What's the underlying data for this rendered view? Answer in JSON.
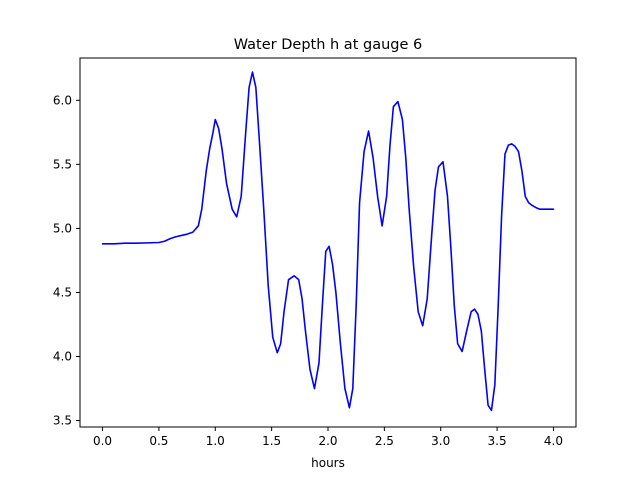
{
  "chart_data": {
    "type": "line",
    "title": "Water Depth h at gauge 6",
    "xlabel": "hours",
    "ylabel": "",
    "xlim": [
      -0.2,
      4.2
    ],
    "ylim": [
      3.45,
      6.33
    ],
    "xticks": [
      0.0,
      0.5,
      1.0,
      1.5,
      2.0,
      2.5,
      3.0,
      3.5,
      4.0
    ],
    "xtick_labels": [
      "0.0",
      "0.5",
      "1.0",
      "1.5",
      "2.0",
      "2.5",
      "3.0",
      "3.5",
      "4.0"
    ],
    "yticks": [
      3.5,
      4.0,
      4.5,
      5.0,
      5.5,
      6.0
    ],
    "ytick_labels": [
      "3.5",
      "4.0",
      "4.5",
      "5.0",
      "5.5",
      "6.0"
    ],
    "grid": false,
    "series": [
      {
        "color": "#0000ff",
        "x": [
          0.0,
          0.1,
          0.2,
          0.3,
          0.4,
          0.5,
          0.55,
          0.6,
          0.65,
          0.7,
          0.75,
          0.8,
          0.85,
          0.88,
          0.92,
          0.95,
          0.98,
          1.0,
          1.03,
          1.06,
          1.1,
          1.15,
          1.19,
          1.23,
          1.27,
          1.3,
          1.33,
          1.36,
          1.39,
          1.43,
          1.47,
          1.51,
          1.55,
          1.58,
          1.61,
          1.65,
          1.7,
          1.74,
          1.77,
          1.8,
          1.84,
          1.88,
          1.92,
          1.95,
          1.98,
          2.01,
          2.04,
          2.07,
          2.11,
          2.15,
          2.19,
          2.22,
          2.25,
          2.28,
          2.32,
          2.36,
          2.4,
          2.44,
          2.48,
          2.52,
          2.55,
          2.58,
          2.62,
          2.66,
          2.69,
          2.72,
          2.76,
          2.8,
          2.84,
          2.88,
          2.92,
          2.95,
          2.98,
          3.02,
          3.06,
          3.09,
          3.12,
          3.15,
          3.19,
          3.23,
          3.27,
          3.3,
          3.33,
          3.36,
          3.39,
          3.42,
          3.45,
          3.48,
          3.51,
          3.54,
          3.57,
          3.6,
          3.63,
          3.66,
          3.69,
          3.72,
          3.75,
          3.78,
          3.81,
          3.85,
          3.88,
          3.91,
          3.94,
          3.97,
          4.0
        ],
        "y": [
          4.88,
          4.88,
          4.885,
          4.885,
          4.887,
          4.89,
          4.9,
          4.92,
          4.935,
          4.945,
          4.955,
          4.97,
          5.02,
          5.15,
          5.45,
          5.62,
          5.75,
          5.85,
          5.78,
          5.62,
          5.35,
          5.15,
          5.09,
          5.25,
          5.75,
          6.1,
          6.22,
          6.1,
          5.7,
          5.15,
          4.55,
          4.15,
          4.03,
          4.1,
          4.35,
          4.6,
          4.63,
          4.6,
          4.45,
          4.2,
          3.9,
          3.75,
          3.95,
          4.4,
          4.82,
          4.86,
          4.72,
          4.5,
          4.1,
          3.75,
          3.6,
          3.75,
          4.4,
          5.2,
          5.6,
          5.76,
          5.55,
          5.25,
          5.02,
          5.25,
          5.65,
          5.95,
          5.99,
          5.85,
          5.55,
          5.15,
          4.7,
          4.35,
          4.24,
          4.45,
          4.95,
          5.3,
          5.48,
          5.52,
          5.25,
          4.85,
          4.4,
          4.1,
          4.04,
          4.2,
          4.35,
          4.37,
          4.33,
          4.2,
          3.9,
          3.62,
          3.58,
          3.78,
          4.4,
          5.1,
          5.58,
          5.65,
          5.66,
          5.64,
          5.6,
          5.45,
          5.25,
          5.2,
          5.18,
          5.16,
          5.15,
          5.15,
          5.15,
          5.15,
          5.15
        ]
      }
    ]
  }
}
